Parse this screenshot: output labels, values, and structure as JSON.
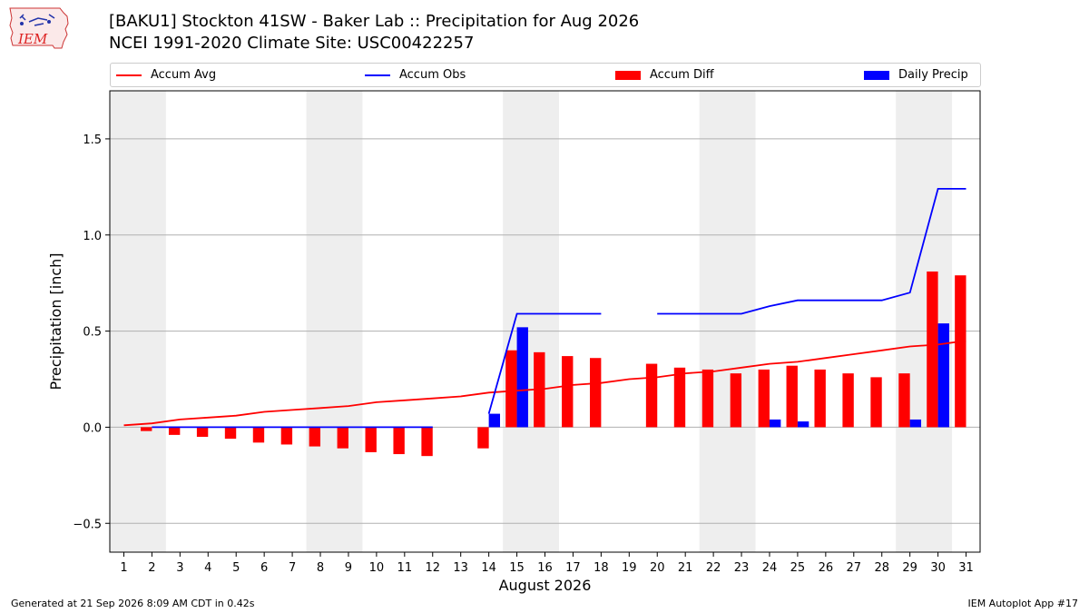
{
  "header": {
    "logo_text": "IEM",
    "title": "[BAKU1] Stockton 41SW - Baker Lab :: Precipitation for Aug 2026",
    "subtitle": "NCEI 1991-2020 Climate Site: USC00422257"
  },
  "footer": {
    "generated": "Generated at 21 Sep 2026 8:09 AM CDT in 0.42s",
    "app": "IEM Autoplot App #17"
  },
  "colors": {
    "avg": "#ff0000",
    "obs": "#0000ff",
    "diff": "#ff0000",
    "daily": "#0000ff",
    "weekend_shade": "#eeeeee",
    "grid": "#b0b0b0"
  },
  "chart_data": {
    "type": "bar",
    "title": "[BAKU1] Stockton 41SW - Baker Lab :: Precipitation for Aug 2026",
    "xlabel": "August 2026",
    "ylabel": "Precipitation [inch]",
    "ylim": [
      -0.65,
      1.75
    ],
    "yticks": [
      -0.5,
      0.0,
      0.5,
      1.0,
      1.5
    ],
    "ytick_labels": [
      "−0.5",
      "0.0",
      "0.5",
      "1.0",
      "1.5"
    ],
    "grid": "horizontal",
    "legend_position": "top",
    "legend": [
      "Accum Avg",
      "Accum Obs",
      "Accum Diff",
      "Daily Precip"
    ],
    "days": [
      1,
      2,
      3,
      4,
      5,
      6,
      7,
      8,
      9,
      10,
      11,
      12,
      13,
      14,
      15,
      16,
      17,
      18,
      19,
      20,
      21,
      22,
      23,
      24,
      25,
      26,
      27,
      28,
      29,
      30,
      31
    ],
    "shaded_day_ranges": [
      [
        1,
        2
      ],
      [
        8,
        9
      ],
      [
        15,
        16
      ],
      [
        22,
        23
      ],
      [
        29,
        30
      ]
    ],
    "series": [
      {
        "name": "Accum Avg",
        "kind": "line",
        "values": [
          0.01,
          0.02,
          0.04,
          0.05,
          0.06,
          0.08,
          0.09,
          0.1,
          0.11,
          0.13,
          0.14,
          0.15,
          0.16,
          0.18,
          0.19,
          0.2,
          0.22,
          0.23,
          0.25,
          0.26,
          0.28,
          0.29,
          0.31,
          0.33,
          0.34,
          0.36,
          0.38,
          0.4,
          0.42,
          0.43,
          0.45
        ]
      },
      {
        "name": "Accum Obs",
        "kind": "line",
        "values": [
          null,
          0.0,
          0.0,
          0.0,
          0.0,
          0.0,
          0.0,
          0.0,
          0.0,
          0.0,
          0.0,
          0.0,
          null,
          0.07,
          0.59,
          0.59,
          0.59,
          0.59,
          null,
          0.59,
          0.59,
          0.59,
          0.59,
          0.63,
          0.66,
          0.66,
          0.66,
          0.66,
          0.7,
          1.24,
          1.24
        ]
      },
      {
        "name": "Accum Diff",
        "kind": "bar",
        "values": [
          null,
          -0.02,
          -0.04,
          -0.05,
          -0.06,
          -0.08,
          -0.09,
          -0.1,
          -0.11,
          -0.13,
          -0.14,
          -0.15,
          null,
          -0.11,
          0.4,
          0.39,
          0.37,
          0.36,
          null,
          0.33,
          0.31,
          0.3,
          0.28,
          0.3,
          0.32,
          0.3,
          0.28,
          0.26,
          0.28,
          0.81,
          0.79
        ]
      },
      {
        "name": "Daily Precip",
        "kind": "bar",
        "values": [
          null,
          0,
          0,
          0,
          0,
          0,
          0,
          0,
          0,
          0,
          0,
          0,
          null,
          0.07,
          0.52,
          0,
          0,
          0,
          null,
          0,
          0,
          0,
          0,
          0.04,
          0.03,
          0,
          0,
          0,
          0.04,
          0.54,
          0
        ]
      }
    ]
  }
}
